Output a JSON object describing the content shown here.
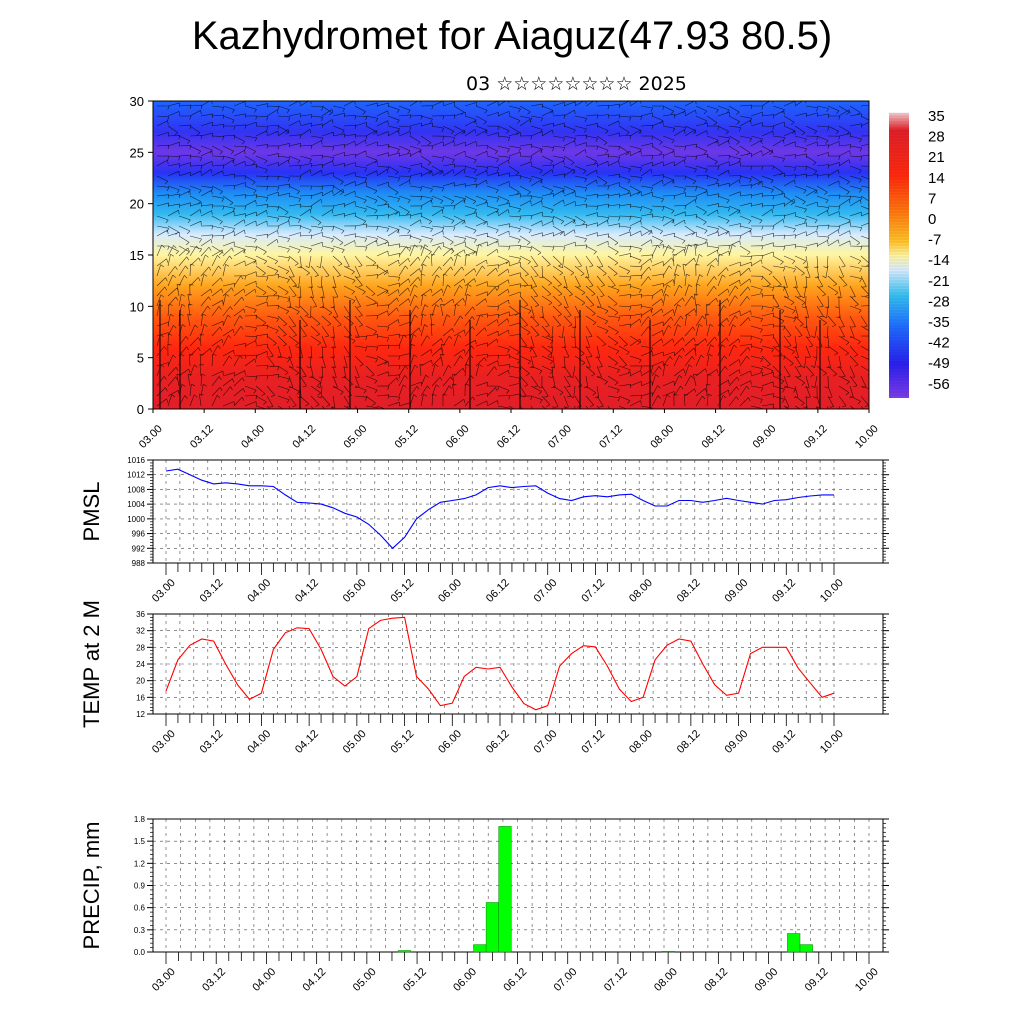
{
  "title": "Kazhydromet for Aiaguz(47.93 80.5)",
  "subtitle": "03 ☆☆☆☆☆☆☆☆ 2025",
  "time_labels": [
    "03.00",
    "03.12",
    "04.00",
    "04.12",
    "05.00",
    "05.12",
    "06.00",
    "06.12",
    "07.00",
    "07.12",
    "08.00",
    "08.12",
    "09.00",
    "09.12",
    "10.00"
  ],
  "colorbar_labels": [
    "35",
    "28",
    "21",
    "14",
    "7",
    "0",
    "-7",
    "-14",
    "-21",
    "-28",
    "-35",
    "-42",
    "-49",
    "-56"
  ],
  "colors": {
    "pmsl_line": "#0000ff",
    "temp_line": "#ff0000",
    "precip_bar": "#00ff00",
    "precip_bar_edge": "#008800"
  },
  "chart_data": [
    {
      "type": "heatmap",
      "name": "cross-section",
      "ylim": [
        0,
        30
      ],
      "yticks": [
        0,
        5,
        10,
        15,
        20,
        25,
        30
      ],
      "colorbar_range": [
        -56,
        35
      ],
      "colorbar_ticks": [
        35,
        28,
        21,
        14,
        7,
        0,
        -7,
        -14,
        -21,
        -28,
        -35,
        -42,
        -49,
        -56
      ],
      "temperature_profile": [
        {
          "level": 0,
          "value": 30
        },
        {
          "level": 3,
          "value": 28
        },
        {
          "level": 6,
          "value": 21
        },
        {
          "level": 9,
          "value": 14
        },
        {
          "level": 12,
          "value": 4
        },
        {
          "level": 15,
          "value": -7
        },
        {
          "level": 17,
          "value": -14
        },
        {
          "level": 19,
          "value": -28
        },
        {
          "level": 21,
          "value": -35
        },
        {
          "level": 23,
          "value": -49
        },
        {
          "level": 25,
          "value": -56
        },
        {
          "level": 27,
          "value": -50
        },
        {
          "level": 30,
          "value": -42
        }
      ],
      "overlay": "wind barbs"
    },
    {
      "type": "line",
      "ylabel": "PMSL",
      "ylim": [
        988,
        1016
      ],
      "yticks": [
        988,
        992,
        996,
        1000,
        1004,
        1008,
        1012,
        1016
      ],
      "x": [
        0,
        3,
        6,
        9,
        12,
        15,
        18,
        21,
        24,
        27,
        30,
        33,
        36,
        39,
        42,
        45,
        48,
        51,
        54,
        57,
        60,
        63,
        66,
        69,
        72,
        75,
        78,
        81,
        84,
        87,
        90,
        93,
        96,
        99,
        102,
        105,
        108,
        111,
        114,
        117,
        120,
        123,
        126,
        129,
        132,
        135,
        138,
        141,
        144,
        147,
        150,
        153,
        156,
        159,
        162,
        165,
        168
      ],
      "values": [
        1013,
        1013.5,
        1012,
        1010.5,
        1009.5,
        1009.8,
        1009.5,
        1009,
        1009,
        1008.8,
        1006.5,
        1004.5,
        1004.3,
        1004,
        1003,
        1001.5,
        1000.5,
        998.5,
        995.5,
        992,
        995,
        1000,
        1002.5,
        1004.5,
        1005,
        1005.5,
        1006.5,
        1008.5,
        1009,
        1008.5,
        1008.8,
        1009,
        1007,
        1005.5,
        1005,
        1006,
        1006.3,
        1006,
        1006.5,
        1006.7,
        1005,
        1003.5,
        1003.5,
        1005,
        1005,
        1004.5,
        1005,
        1005.6,
        1005,
        1004.5,
        1004,
        1005,
        1005.2,
        1005.8,
        1006.2,
        1006.5,
        1006.5
      ]
    },
    {
      "type": "line",
      "ylabel": "TEMP at 2 M",
      "ylim": [
        12,
        36
      ],
      "yticks": [
        12,
        16,
        20,
        24,
        28,
        32,
        36
      ],
      "x": [
        0,
        3,
        6,
        9,
        12,
        15,
        18,
        21,
        24,
        27,
        30,
        33,
        36,
        39,
        42,
        45,
        48,
        51,
        54,
        57,
        60,
        63,
        66,
        69,
        72,
        75,
        78,
        81,
        84,
        87,
        90,
        93,
        96,
        99,
        102,
        105,
        108,
        111,
        114,
        117,
        120,
        123,
        126,
        129,
        132,
        135,
        138,
        141,
        144,
        147,
        150,
        153,
        156,
        159,
        162,
        165,
        168
      ],
      "values": [
        17.5,
        25,
        28.5,
        30,
        29.5,
        24,
        19,
        15.5,
        17,
        27.5,
        31.5,
        32.7,
        32.5,
        27.5,
        21,
        18.7,
        21,
        32.5,
        34.5,
        35,
        35.2,
        21,
        18,
        14,
        14.6,
        21,
        23.2,
        22.8,
        23.2,
        18.5,
        14.5,
        13,
        14,
        23.5,
        26.5,
        28.4,
        28.1,
        23.5,
        18,
        15,
        16,
        25,
        28.5,
        30,
        29.5,
        24,
        19,
        16.5,
        17,
        26.5,
        28,
        28,
        28,
        23,
        19.5,
        16,
        17
      ]
    },
    {
      "type": "bar",
      "ylabel": "PRECIP, mm",
      "ylim": [
        0,
        1.8
      ],
      "yticks": [
        0.0,
        0.3,
        0.6,
        0.9,
        1.2,
        1.5,
        1.8
      ],
      "x": [
        57,
        75,
        78,
        81,
        120,
        150,
        153
      ],
      "values": [
        0.02,
        0.1,
        0.67,
        1.7,
        0.01,
        0.25,
        0.1
      ]
    }
  ]
}
